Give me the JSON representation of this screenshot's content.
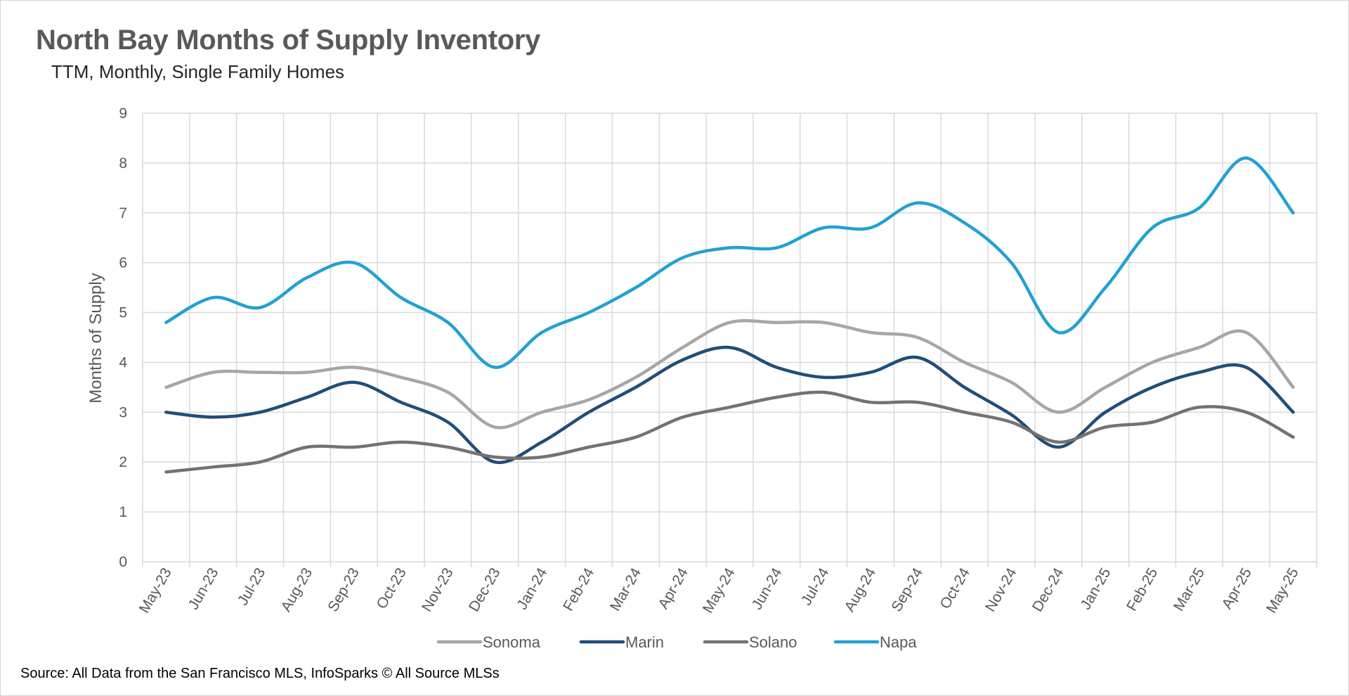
{
  "chart_data": {
    "type": "line",
    "title": "North Bay Months of Supply Inventory",
    "subtitle": "TTM, Monthly, Single Family Homes",
    "xlabel": "",
    "ylabel": "Months of Supply",
    "ylim": [
      0,
      9
    ],
    "yticks": [
      "0",
      "1",
      "2",
      "3",
      "4",
      "5",
      "6",
      "7",
      "8",
      "9"
    ],
    "grid": true,
    "legend_position": "bottom",
    "categories": [
      "May-23",
      "Jun-23",
      "Jul-23",
      "Aug-23",
      "Sep-23",
      "Oct-23",
      "Nov-23",
      "Dec-23",
      "Jan-24",
      "Feb-24",
      "Mar-24",
      "Apr-24",
      "May-24",
      "Jun-24",
      "Jul-24",
      "Aug-24",
      "Sep-24",
      "Oct-24",
      "Nov-24",
      "Dec-24",
      "Jan-25",
      "Feb-25",
      "Mar-25",
      "Apr-25",
      "May-25"
    ],
    "series": [
      {
        "name": "Sonoma",
        "color": "#a6a6a6",
        "values": [
          3.5,
          3.8,
          3.8,
          3.8,
          3.9,
          3.7,
          3.4,
          2.7,
          3.0,
          3.25,
          3.7,
          4.3,
          4.8,
          4.8,
          4.8,
          4.6,
          4.5,
          4.0,
          3.6,
          3.0,
          3.5,
          4.0,
          4.3,
          4.6,
          3.5
        ]
      },
      {
        "name": "Marin",
        "color": "#1f4e79",
        "values": [
          3.0,
          2.9,
          3.0,
          3.3,
          3.6,
          3.2,
          2.8,
          2.0,
          2.4,
          3.0,
          3.5,
          4.05,
          4.3,
          3.9,
          3.7,
          3.8,
          4.1,
          3.5,
          2.95,
          2.3,
          3.0,
          3.5,
          3.8,
          3.9,
          3.0
        ]
      },
      {
        "name": "Solano",
        "color": "#767171",
        "values": [
          1.8,
          1.9,
          2.0,
          2.3,
          2.3,
          2.4,
          2.3,
          2.1,
          2.1,
          2.3,
          2.5,
          2.9,
          3.1,
          3.3,
          3.4,
          3.2,
          3.2,
          3.0,
          2.8,
          2.4,
          2.7,
          2.8,
          3.1,
          3.0,
          2.5
        ]
      },
      {
        "name": "Napa",
        "color": "#23a0d4",
        "values": [
          4.8,
          5.3,
          5.1,
          5.7,
          6.0,
          5.3,
          4.8,
          3.9,
          4.6,
          5.0,
          5.5,
          6.1,
          6.3,
          6.3,
          6.7,
          6.7,
          7.2,
          6.8,
          6.0,
          4.6,
          5.5,
          6.7,
          7.1,
          8.1,
          7.0
        ]
      }
    ],
    "source": "Source: All Data from the San Francisco MLS, InfoSparks © All Source MLSs"
  }
}
